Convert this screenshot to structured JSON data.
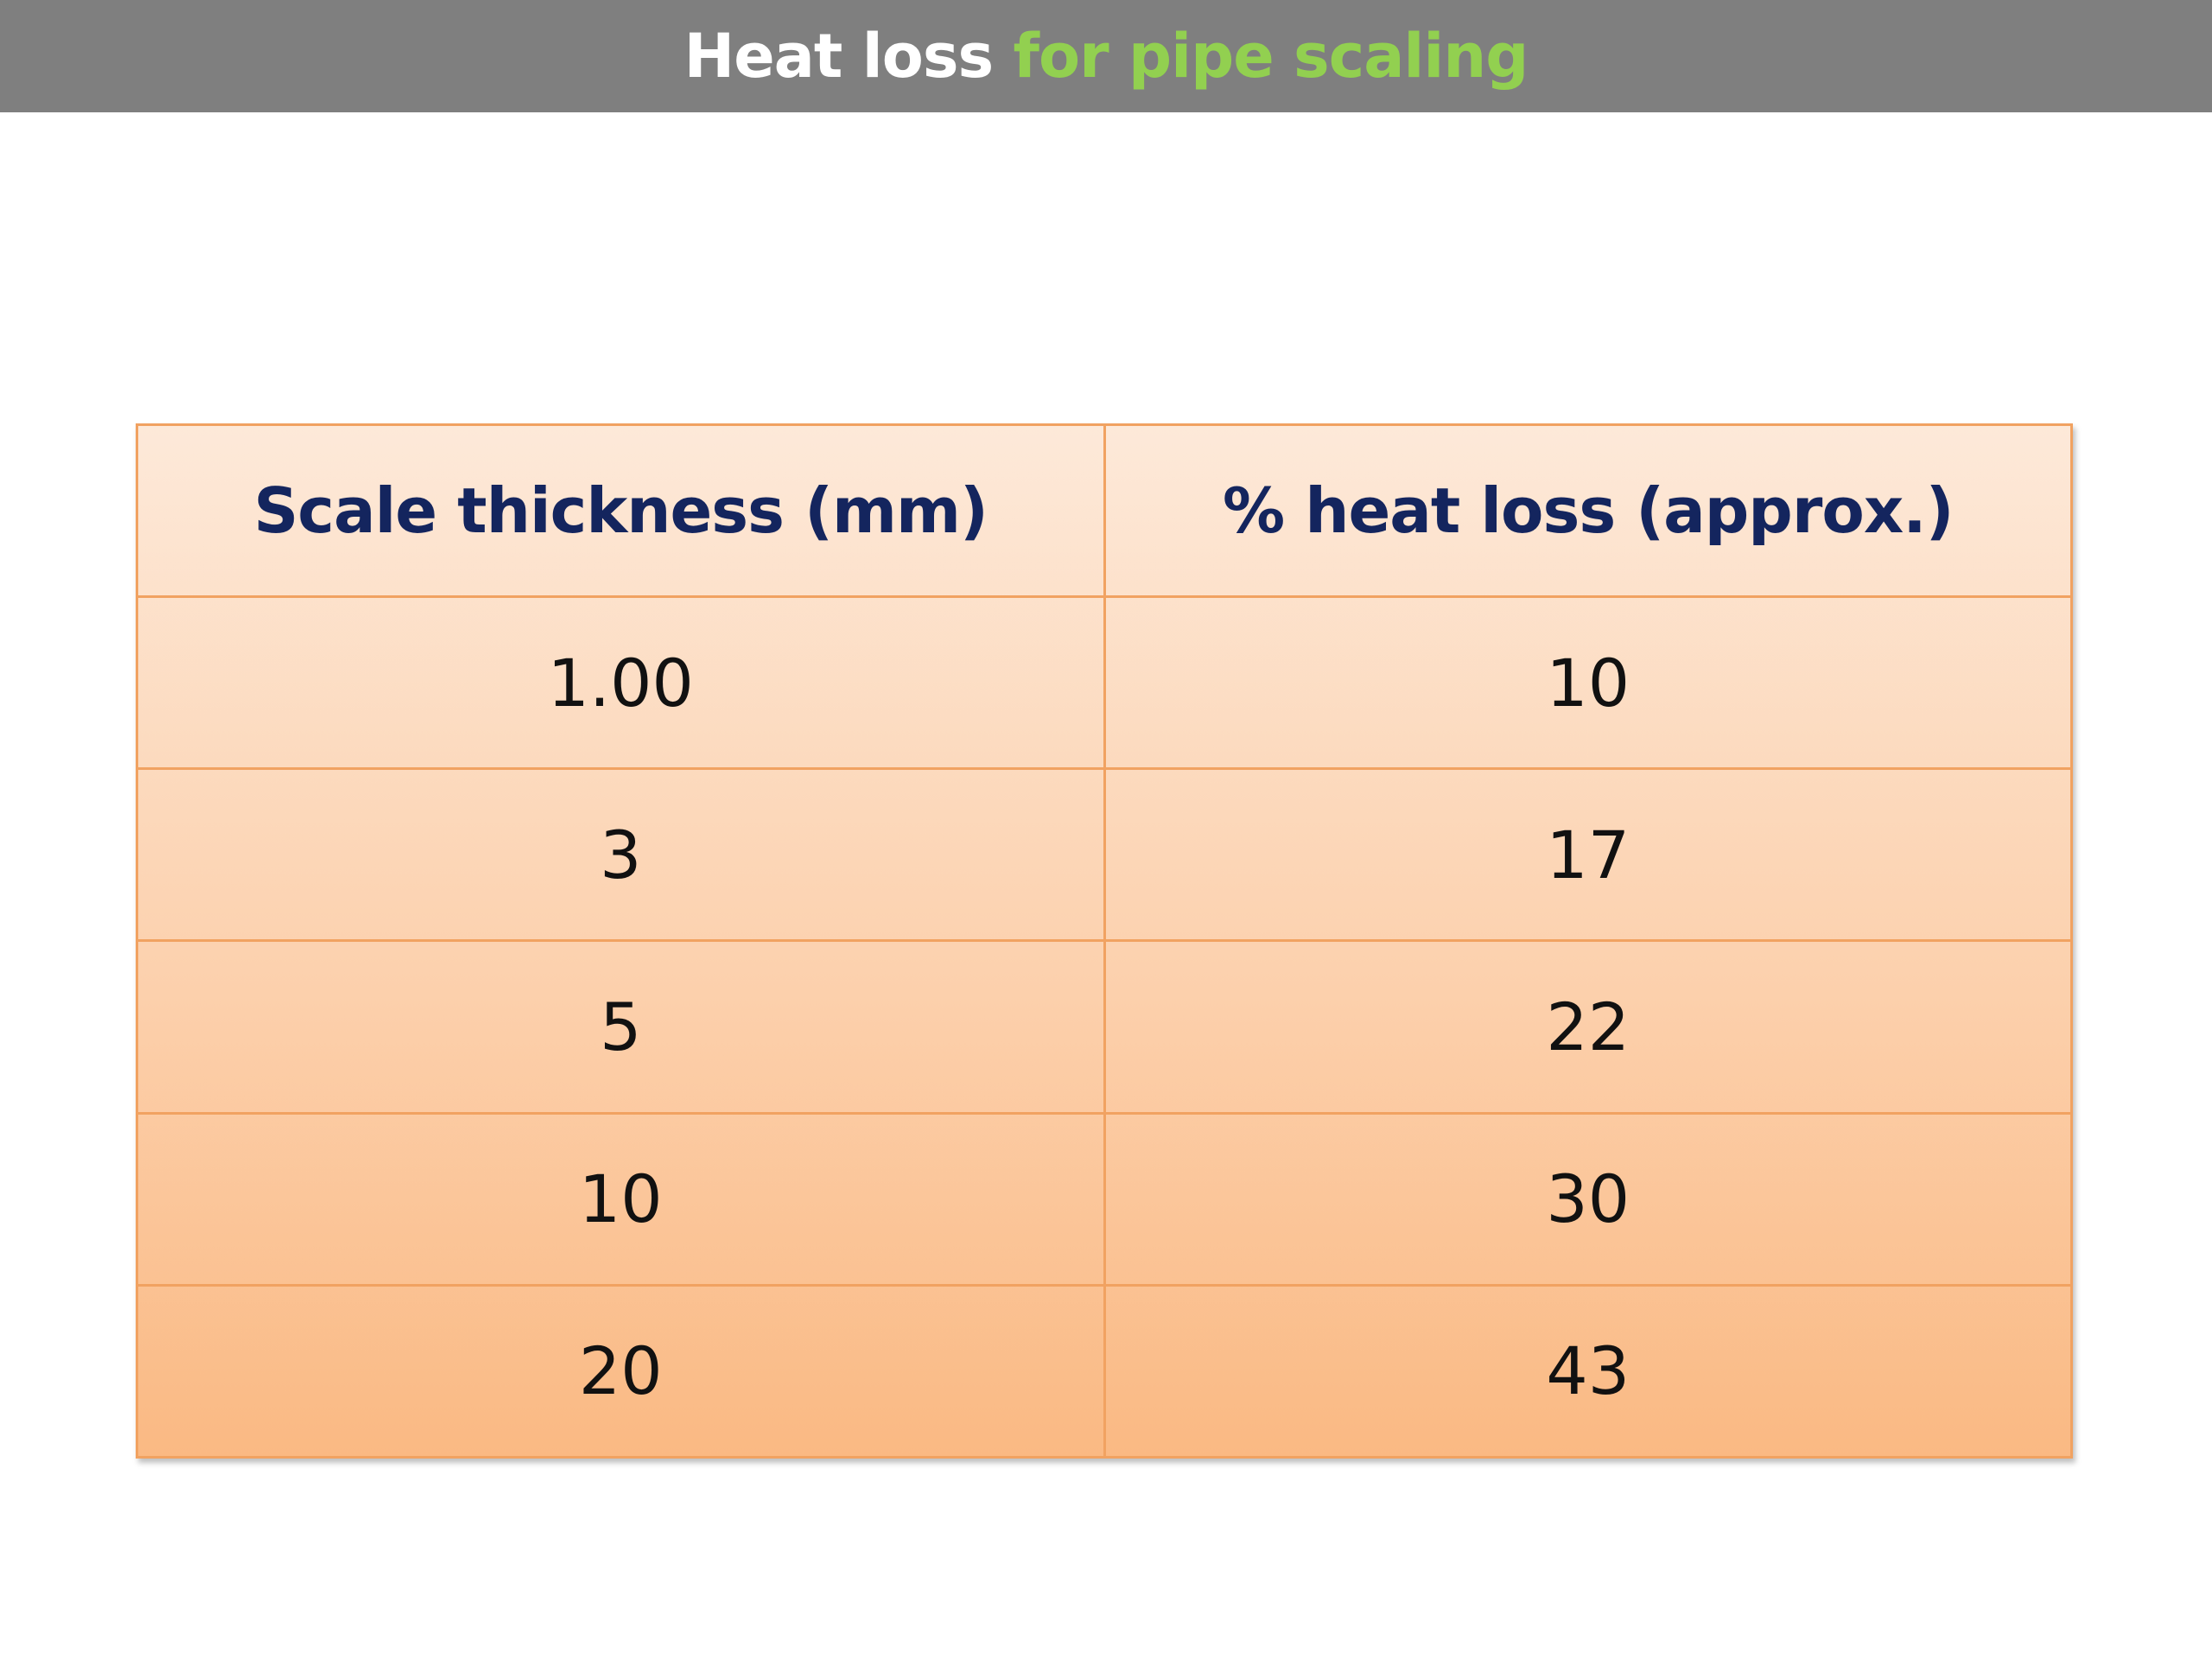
{
  "slide": {
    "title_part1": "Heat loss",
    "title_part2": "for pipe scaling",
    "colors": {
      "title_bar": "#7f7f7f",
      "title_highlight": "#92d050",
      "header_text": "#14255e",
      "table_border": "#f1a261"
    }
  },
  "table": {
    "headers": [
      "Scale thickness (mm)",
      "% heat loss (approx.)"
    ],
    "rows": [
      [
        "1.00",
        "10"
      ],
      [
        "3",
        "17"
      ],
      [
        "5",
        "22"
      ],
      [
        "10",
        "30"
      ],
      [
        "20",
        "43"
      ]
    ]
  }
}
